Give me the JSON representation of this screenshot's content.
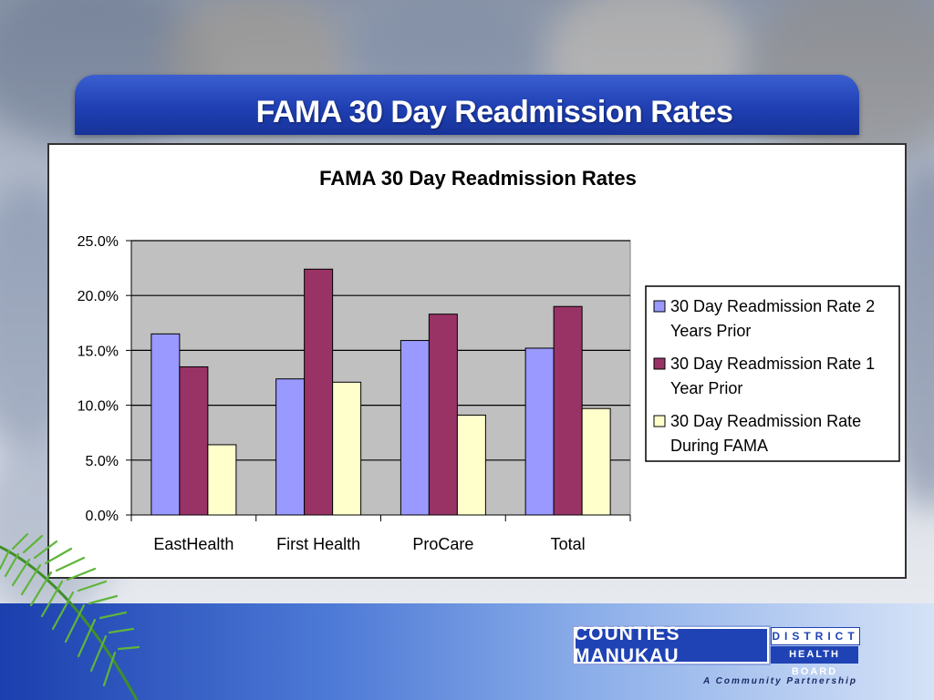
{
  "slide": {
    "title": "FAMA 30 Day Readmission Rates"
  },
  "chart_data": {
    "type": "bar",
    "title": "FAMA 30 Day Readmission Rates",
    "xlabel": "",
    "ylabel": "",
    "categories": [
      "EastHealth",
      "First Health",
      "ProCare",
      "Total"
    ],
    "series": [
      {
        "name": "30 Day Readmission Rate 2 Years Prior",
        "values": [
          16.5,
          12.4,
          15.9,
          15.2
        ],
        "color": "#9999ff"
      },
      {
        "name": "30 Day Readmission Rate 1 Year Prior",
        "values": [
          13.5,
          22.4,
          18.3,
          19.0
        ],
        "color": "#993366"
      },
      {
        "name": "30 Day Readmission Rate During FAMA",
        "values": [
          6.4,
          12.1,
          9.1,
          9.7
        ],
        "color": "#ffffcc"
      }
    ],
    "ylim": [
      0,
      25
    ],
    "yticks": [
      "0.0%",
      "5.0%",
      "10.0%",
      "15.0%",
      "20.0%",
      "25.0%"
    ],
    "legend": {
      "placement": "right",
      "entries": [
        [
          "30 Day Readmission Rate 2",
          "Years Prior"
        ],
        [
          "30 Day Readmission Rate 1",
          "Year Prior"
        ],
        [
          "30 Day Readmission Rate",
          "During FAMA"
        ]
      ]
    },
    "plot_background": "#c0c0c0",
    "grid": true
  },
  "logo": {
    "name": "COUNTIES MANUKAU",
    "district": "DISTRICT",
    "board": "HEALTH BOARD",
    "tagline": "A Community Partnership"
  }
}
